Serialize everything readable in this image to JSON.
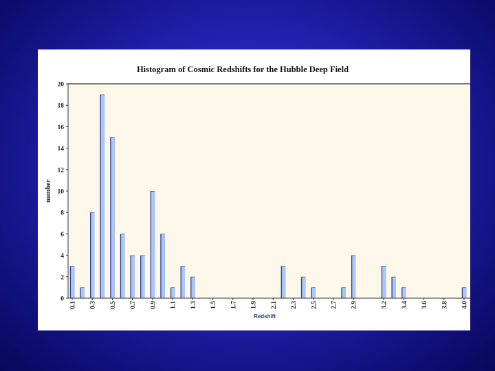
{
  "colors": {
    "background": "#2424b8",
    "panel": "#ffffff",
    "plot_area": "#fdf8e9",
    "bar_fill": "#aac8f2",
    "bar_shadow": "#2e3d96"
  },
  "chart_data": {
    "type": "bar",
    "title": "Histogram of Cosmic Redshifts for the Hubble Deep Field",
    "xlabel": "Redshift",
    "ylabel": "number",
    "ylim": [
      0,
      20
    ],
    "yticks": [
      0,
      2,
      4,
      6,
      8,
      10,
      12,
      14,
      16,
      18,
      20
    ],
    "grid": false,
    "x": [
      0.1,
      0.2,
      0.3,
      0.4,
      0.5,
      0.6,
      0.7,
      0.8,
      0.9,
      1.0,
      1.1,
      1.2,
      1.3,
      1.4,
      1.5,
      1.6,
      1.7,
      1.8,
      1.9,
      2.0,
      2.1,
      2.2,
      2.3,
      2.4,
      2.5,
      2.6,
      2.7,
      2.8,
      2.9,
      3.0,
      3.1,
      3.2,
      3.3,
      3.4,
      3.5,
      3.6,
      3.7,
      3.8,
      3.9,
      4.0
    ],
    "values": [
      3,
      1,
      8,
      19,
      15,
      6,
      4,
      4,
      10,
      6,
      1,
      3,
      2,
      0,
      0,
      0,
      0,
      0,
      0,
      0,
      0,
      3,
      0,
      2,
      1,
      0,
      0,
      1,
      4,
      0,
      0,
      3,
      2,
      1,
      0,
      0,
      0,
      0,
      0,
      1
    ],
    "x_tick_labels": [
      {
        "label": "0.1",
        "index": 0
      },
      {
        "label": "0.3",
        "index": 2
      },
      {
        "label": "0.5",
        "index": 4
      },
      {
        "label": "0.7",
        "index": 6
      },
      {
        "label": "0.9",
        "index": 8
      },
      {
        "label": "1.1",
        "index": 10
      },
      {
        "label": "1.3",
        "index": 12
      },
      {
        "label": "1.5",
        "index": 14
      },
      {
        "label": "1.7",
        "index": 16
      },
      {
        "label": "1.9",
        "index": 18
      },
      {
        "label": "2.1",
        "index": 20
      },
      {
        "label": "2.3",
        "index": 22
      },
      {
        "label": "2.5",
        "index": 24
      },
      {
        "label": "2.7",
        "index": 26
      },
      {
        "label": "2.9",
        "index": 28
      },
      {
        "label": "3.2",
        "index": 31
      },
      {
        "label": "3.4",
        "index": 33
      },
      {
        "label": "3.6",
        "index": 35
      },
      {
        "label": "3.8",
        "index": 37
      },
      {
        "label": "4.0",
        "index": 39
      }
    ]
  }
}
